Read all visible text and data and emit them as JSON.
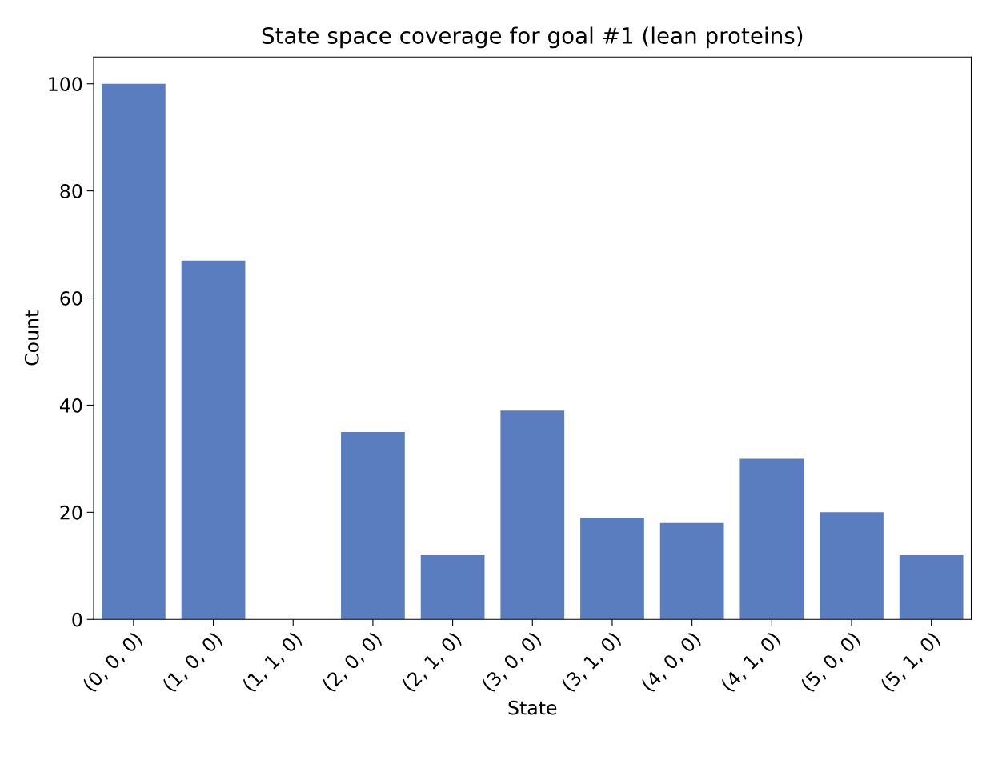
{
  "chart_data": {
    "type": "bar",
    "title": "State space coverage for goal #1 (lean proteins)",
    "xlabel": "State",
    "ylabel": "Count",
    "categories": [
      "(0, 0, 0)",
      "(1, 0, 0)",
      "(1, 1, 0)",
      "(2, 0, 0)",
      "(2, 1, 0)",
      "(3, 0, 0)",
      "(3, 1, 0)",
      "(4, 0, 0)",
      "(4, 1, 0)",
      "(5, 0, 0)",
      "(5, 1, 0)"
    ],
    "values": [
      100,
      67,
      0,
      35,
      12,
      39,
      19,
      18,
      30,
      20,
      12
    ],
    "color": "#5a7dc0",
    "ylim": [
      0,
      105
    ],
    "yticks": [
      0,
      20,
      40,
      60,
      80,
      100
    ],
    "grid": false
  }
}
